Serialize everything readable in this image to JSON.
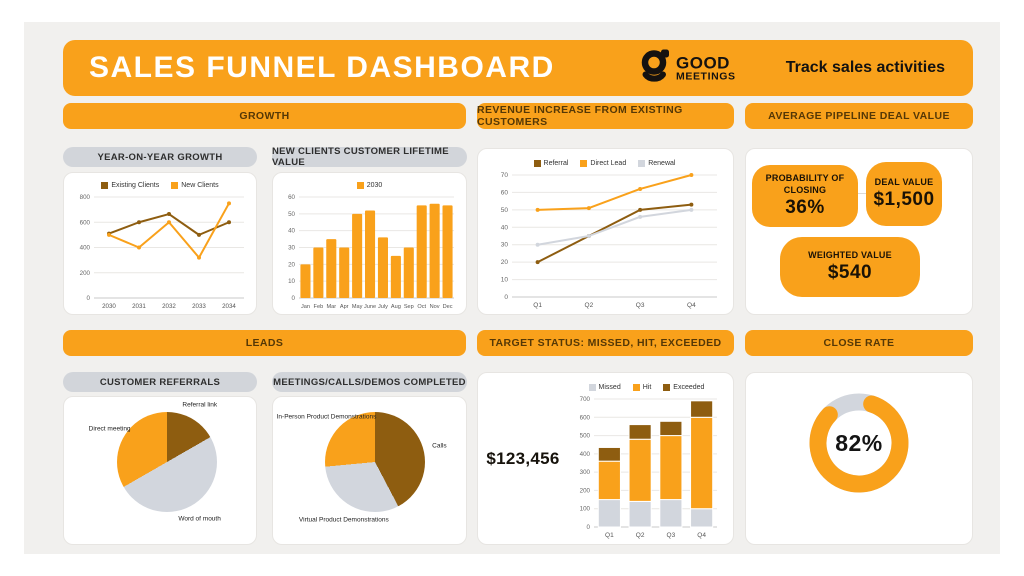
{
  "colors": {
    "orange": "#F9A11B",
    "brown": "#8E5D10",
    "gray": "#D2D6DD",
    "panel_bg": "#F1F0EE",
    "card_bg": "#FFFFFF"
  },
  "header": {
    "title": "SALES FUNNEL DASHBOARD",
    "tagline": "Track sales activities",
    "logo": {
      "line1": "GOOD",
      "line2": "MEETINGS",
      "icon": "g-logo-icon"
    }
  },
  "sections": {
    "growth": "GROWTH",
    "revenue": "REVENUE INCREASE FROM EXISTING CUSTOMERS",
    "pipeline": "AVERAGE PIPELINE DEAL VALUE",
    "leads": "LEADS",
    "target": "TARGET STATUS: MISSED, HIT, EXCEEDED",
    "close": "CLOSE RATE"
  },
  "subheaders": {
    "yoy": "YEAR-ON-YEAR GROWTH",
    "clv": "NEW CLIENTS CUSTOMER LIFETIME VALUE",
    "referrals": "CUSTOMER REFERRALS",
    "meetings": "MEETINGS/CALLS/DEMOS COMPLETED"
  },
  "kpis": {
    "probability": {
      "label": "PROBABILITY OF CLOSING",
      "value": "36%"
    },
    "deal_value": {
      "label": "DEAL VALUE",
      "value": "$1,500"
    },
    "weighted_value": {
      "label": "WEIGHTED VALUE",
      "value": "$540"
    }
  },
  "target_amount": "$123,456",
  "chart_data": [
    {
      "id": "yoy",
      "type": "line",
      "title": "YEAR-ON-YEAR GROWTH",
      "categories": [
        "2030",
        "2031",
        "2032",
        "2033",
        "2034"
      ],
      "series": [
        {
          "name": "Existing Clients",
          "color": "#8E5D10",
          "values": [
            510,
            600,
            665,
            500,
            600
          ]
        },
        {
          "name": "New Clients",
          "color": "#F9A11B",
          "values": [
            500,
            400,
            600,
            320,
            750
          ]
        }
      ],
      "ylim": [
        0,
        800
      ],
      "yticks": [
        0,
        200,
        400,
        600,
        800
      ],
      "grid": true,
      "legend_position": "top"
    },
    {
      "id": "clv",
      "type": "bar",
      "title": "NEW CLIENTS CUSTOMER LIFETIME VALUE",
      "categories": [
        "Jan",
        "Feb",
        "Mar",
        "Apr",
        "May",
        "June",
        "July",
        "Aug",
        "Sep",
        "Oct",
        "Nov",
        "Dec"
      ],
      "series": [
        {
          "name": "2030",
          "color": "#F9A11B",
          "values": [
            20,
            30,
            35,
            30,
            50,
            52,
            36,
            25,
            30,
            55,
            56,
            55
          ]
        }
      ],
      "ylim": [
        0,
        60
      ],
      "yticks": [
        0,
        10,
        20,
        30,
        40,
        50,
        60
      ],
      "grid": true,
      "legend_position": "top"
    },
    {
      "id": "revenue",
      "type": "line",
      "title": "REVENUE INCREASE FROM EXISTING CUSTOMERS",
      "categories": [
        "Q1",
        "Q2",
        "Q3",
        "Q4"
      ],
      "series": [
        {
          "name": "Referral",
          "color": "#8E5D10",
          "values": [
            20,
            35,
            50,
            53
          ]
        },
        {
          "name": "Direct Lead",
          "color": "#F9A11B",
          "values": [
            50,
            51,
            62,
            70
          ]
        },
        {
          "name": "Renewal",
          "color": "#D2D6DD",
          "values": [
            30,
            35,
            46,
            50
          ]
        }
      ],
      "ylim": [
        0,
        70
      ],
      "yticks": [
        0,
        10,
        20,
        30,
        40,
        50,
        60,
        70
      ],
      "grid": true,
      "legend_position": "top"
    },
    {
      "id": "target",
      "type": "stacked-bar",
      "title": "TARGET STATUS: MISSED, HIT, EXCEEDED",
      "categories": [
        "Q1",
        "Q2",
        "Q3",
        "Q4"
      ],
      "series": [
        {
          "name": "Missed",
          "color": "#D2D6DD",
          "values": [
            150,
            140,
            150,
            100
          ]
        },
        {
          "name": "Hit",
          "color": "#F9A11B",
          "values": [
            210,
            340,
            350,
            500
          ]
        },
        {
          "name": "Exceeded",
          "color": "#8E5D10",
          "values": [
            75,
            80,
            78,
            90
          ]
        }
      ],
      "ylim": [
        0,
        700
      ],
      "yticks": [
        0,
        100,
        200,
        300,
        400,
        500,
        600,
        700
      ],
      "grid": true,
      "legend_position": "top"
    },
    {
      "id": "referral-pie",
      "type": "pie",
      "title": "CUSTOMER REFERRALS",
      "slices": [
        {
          "label": "Referral link",
          "pct": 16.7,
          "color": "#8E5D10"
        },
        {
          "label": "Word of mouth",
          "pct": 50.0,
          "color": "#D2D6DD"
        },
        {
          "label": "Direct meeting",
          "pct": 33.3,
          "color": "#F9A11B"
        }
      ]
    },
    {
      "id": "meetings-pie",
      "type": "pie",
      "title": "MEETINGS/CALLS/DEMOS COMPLETED",
      "slices": [
        {
          "label": "Calls",
          "pct": 42.3,
          "color": "#8E5D10"
        },
        {
          "label": "Virtual Product Demonstrations",
          "pct": 31.2,
          "color": "#D2D6DD"
        },
        {
          "label": "In-Person Product Demonstrations",
          "pct": 26.5,
          "color": "#F9A11B"
        }
      ]
    },
    {
      "id": "close-donut",
      "type": "donut",
      "title": "CLOSE RATE",
      "value": 82,
      "label": "82%",
      "arc_color": "#F9A11B",
      "track_color": "#D2D6DD"
    }
  ]
}
